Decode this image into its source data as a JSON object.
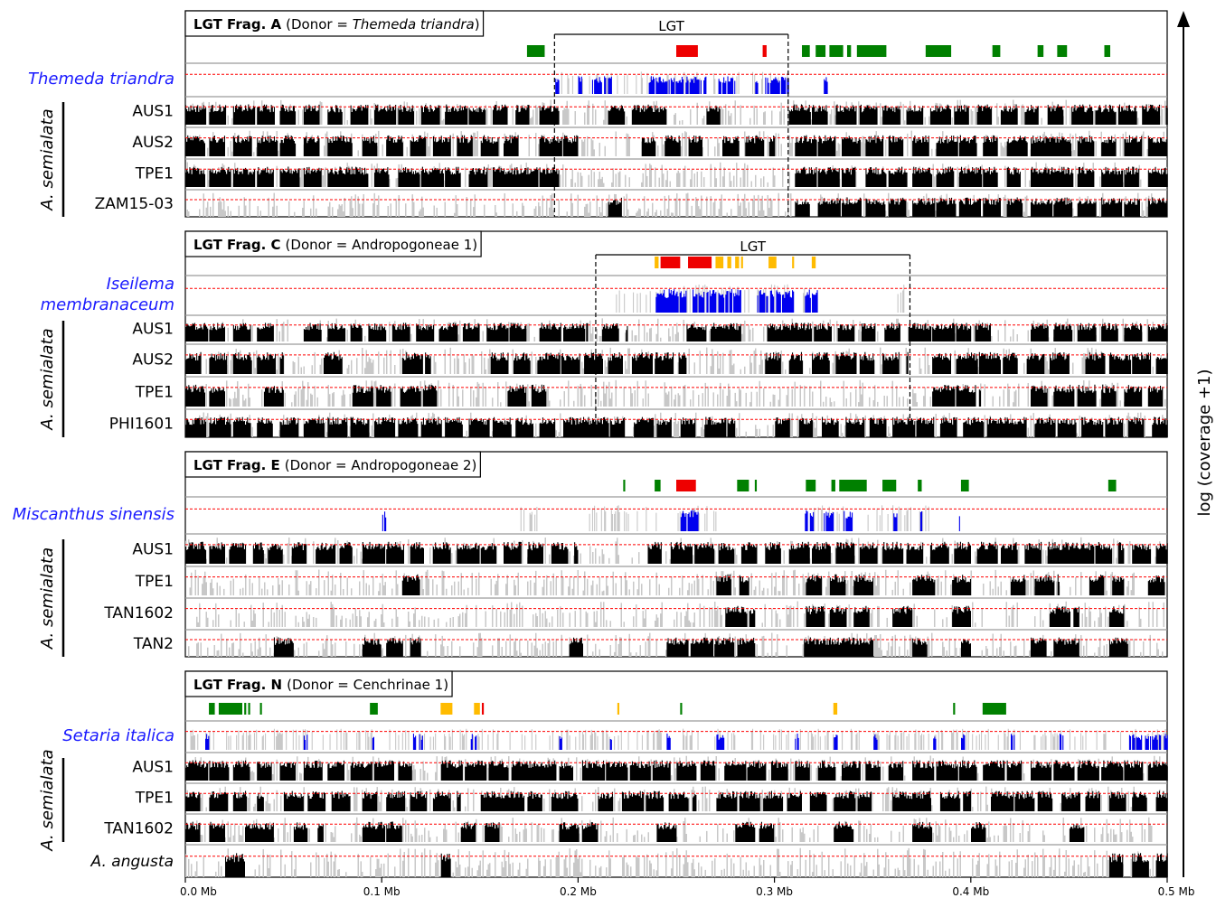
{
  "chart_data": {
    "type": "coverage-track",
    "y_axis_label": "log (coverage +1)",
    "x_axis": {
      "range": [
        0,
        0.5
      ],
      "ticks": [
        0,
        0.1,
        0.2,
        0.3,
        0.4,
        0.5
      ],
      "tick_labels": [
        "0.0 Mb",
        "0.1 Mb",
        "0.2 Mb",
        "0.3 Mb",
        "0.4 Mb",
        "0.5 Mb"
      ]
    },
    "species_group_label": "A. semialata",
    "colors": {
      "donor_coverage": "#0000ee",
      "recipient_coverage": "#000000",
      "background_coverage": "#c8c8c8",
      "threshold_line": "#ff0000",
      "gene_type1": "#008000",
      "gene_type2": "#ee0000",
      "gene_type3": "#ffbb00",
      "donor_label": "#1a1aff"
    },
    "panels": [
      {
        "title_bold": "LGT Frag. A",
        "title_prefix": "(Donor = ",
        "title_donor": "Themeda triandra",
        "title_suffix": ")",
        "donor_italic": true,
        "lgt_label": "LGT",
        "lgt_region": [
          0.188,
          0.307
        ],
        "donor_lines": [
          "Themeda triandra"
        ],
        "samples": [
          "AUS1",
          "AUS2",
          "TPE1",
          "ZAM15-03"
        ],
        "genes_green": [
          [
            0.174,
            0.183
          ],
          [
            0.314,
            0.318
          ],
          [
            0.321,
            0.326
          ],
          [
            0.328,
            0.335
          ],
          [
            0.337,
            0.339
          ],
          [
            0.342,
            0.357
          ],
          [
            0.377,
            0.39
          ],
          [
            0.411,
            0.415
          ],
          [
            0.434,
            0.437
          ],
          [
            0.444,
            0.449
          ],
          [
            0.468,
            0.471
          ]
        ],
        "genes_red": [
          [
            0.25,
            0.261
          ],
          [
            0.294,
            0.296
          ]
        ],
        "genes_yellow": []
      },
      {
        "title_bold": "LGT Frag. C",
        "title_prefix": "(Donor = ",
        "title_donor": "Andropogoneae 1",
        "title_suffix": ")",
        "donor_italic": false,
        "lgt_label": "LGT",
        "lgt_region": [
          0.209,
          0.369
        ],
        "donor_lines": [
          "Iseilema",
          "membranaceum"
        ],
        "samples": [
          "AUS1",
          "AUS2",
          "TPE1",
          "PHI1601"
        ],
        "genes_green": [],
        "genes_red": [
          [
            0.242,
            0.252
          ],
          [
            0.256,
            0.268
          ]
        ],
        "genes_yellow": [
          [
            0.239,
            0.241
          ],
          [
            0.27,
            0.274
          ],
          [
            0.276,
            0.278
          ],
          [
            0.28,
            0.282
          ],
          [
            0.283,
            0.284
          ],
          [
            0.297,
            0.301
          ],
          [
            0.309,
            0.31
          ],
          [
            0.319,
            0.321
          ]
        ]
      },
      {
        "title_bold": "LGT Frag. E",
        "title_prefix": "(Donor = ",
        "title_donor": "Andropogoneae 2",
        "title_suffix": ")",
        "donor_italic": false,
        "lgt_label": "",
        "lgt_region": null,
        "donor_lines": [
          "Miscanthus sinensis"
        ],
        "samples": [
          "AUS1",
          "TPE1",
          "TAN1602",
          "TAN2"
        ],
        "genes_green": [
          [
            0.223,
            0.224
          ],
          [
            0.239,
            0.242
          ],
          [
            0.281,
            0.287
          ],
          [
            0.29,
            0.291
          ],
          [
            0.316,
            0.321
          ],
          [
            0.329,
            0.331
          ],
          [
            0.333,
            0.347
          ],
          [
            0.355,
            0.362
          ],
          [
            0.373,
            0.375
          ],
          [
            0.395,
            0.399
          ],
          [
            0.47,
            0.474
          ]
        ],
        "genes_red": [
          [
            0.25,
            0.26
          ]
        ],
        "genes_yellow": []
      },
      {
        "title_bold": "LGT Frag. N",
        "title_prefix": "(Donor = ",
        "title_donor": "Cenchrinae 1",
        "title_suffix": ")",
        "donor_italic": false,
        "lgt_label": "",
        "lgt_region": null,
        "donor_lines": [
          "Setaria italica"
        ],
        "samples": [
          "AUS1",
          "TPE1",
          "TAN1602",
          "A. angusta"
        ],
        "genes_green": [
          [
            0.012,
            0.015
          ],
          [
            0.017,
            0.029
          ],
          [
            0.03,
            0.031
          ],
          [
            0.032,
            0.033
          ],
          [
            0.038,
            0.039
          ],
          [
            0.094,
            0.098
          ],
          [
            0.252,
            0.253
          ],
          [
            0.391,
            0.392
          ],
          [
            0.406,
            0.418
          ]
        ],
        "genes_red": [
          [
            0.151,
            0.152
          ]
        ],
        "genes_yellow": [
          [
            0.13,
            0.136
          ],
          [
            0.147,
            0.15
          ],
          [
            0.22,
            0.221
          ],
          [
            0.33,
            0.332
          ]
        ]
      }
    ]
  }
}
